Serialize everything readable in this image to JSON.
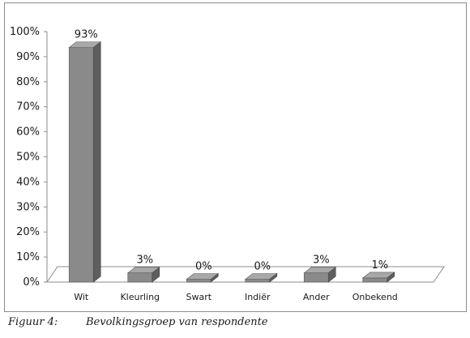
{
  "chart_data": {
    "type": "bar",
    "categories": [
      "Wit",
      "Kleurling",
      "Swart",
      "Indiër",
      "Ander",
      "Onbekend"
    ],
    "values": [
      93,
      3,
      0,
      0,
      3,
      1
    ],
    "data_labels": [
      "93%",
      "3%",
      "0%",
      "0%",
      "3%",
      "1%"
    ],
    "ylim": [
      0,
      100
    ],
    "yticks": [
      0,
      10,
      20,
      30,
      40,
      50,
      60,
      70,
      80,
      90,
      100
    ],
    "ytick_labels": [
      "0%",
      "10%",
      "20%",
      "30%",
      "40%",
      "50%",
      "60%",
      "70%",
      "80%",
      "90%",
      "100%"
    ],
    "grid": false,
    "style": "3d",
    "bar_color": "#8a8a8a"
  },
  "caption": {
    "label": "Figuur 4:",
    "text": "Bevolkingsgroep van respondente"
  }
}
